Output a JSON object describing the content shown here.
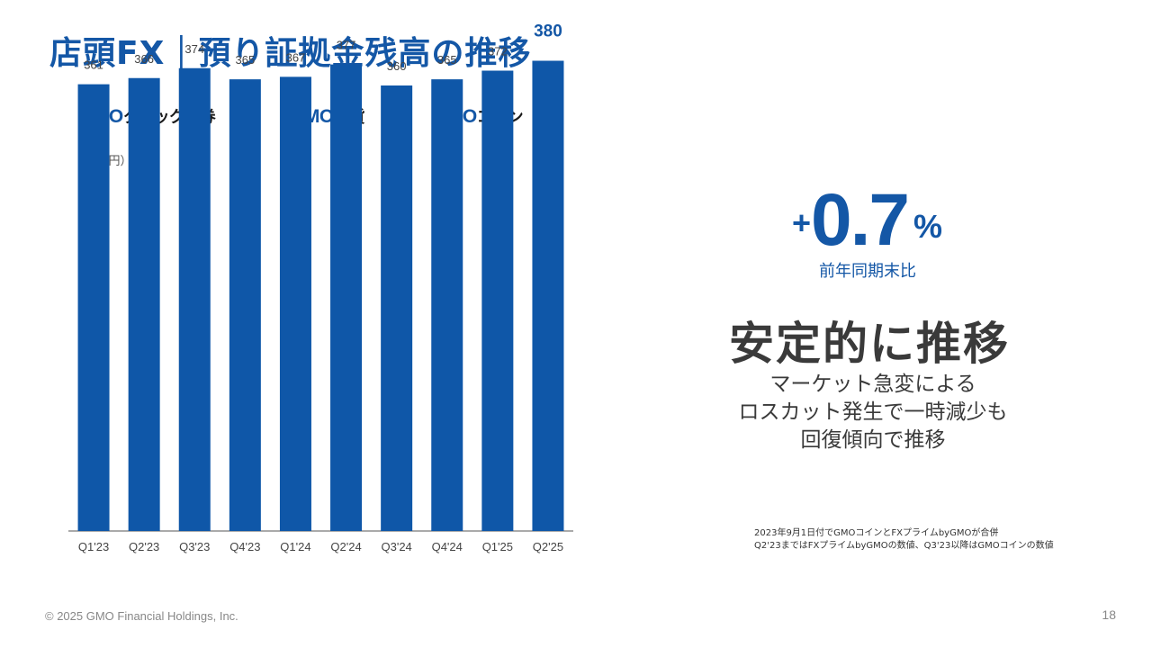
{
  "header": {
    "title": "店頭FX｜預り証拠金残高の推移"
  },
  "logos": [
    {
      "brand": "GMO",
      "name": "クリック証券",
      "icon": "gmo-click-logo"
    },
    {
      "brand": "GMO",
      "name": "外貨",
      "icon": "gmo-gaika-logo"
    },
    {
      "brand": "GMO",
      "name": "コイン",
      "icon": "gmo-coin-logo"
    }
  ],
  "unit_label": "（10億円）",
  "chart_data": {
    "type": "bar",
    "categories": [
      "Q1'23",
      "Q2'23",
      "Q3'23",
      "Q4'23",
      "Q1'24",
      "Q2'24",
      "Q3'24",
      "Q4'24",
      "Q1'25",
      "Q2'25"
    ],
    "values": [
      361,
      366,
      374,
      365,
      367,
      377,
      360,
      365,
      372,
      380
    ],
    "highlight_index": 9,
    "ylabel": "（10億円）",
    "ylim": [
      0,
      400
    ],
    "grid": false,
    "color": "#0f57a8"
  },
  "kpi": {
    "sign": "+",
    "value": "0.7",
    "unit": "%",
    "label": "前年同期末比"
  },
  "headline": "安定的に推移",
  "description": [
    "マーケット急変による",
    "ロスカット発生で一時減少も",
    "回復傾向で推移"
  ],
  "notes": [
    "2023年9月1日付でGMOコインとFXプライムbyGMOが合併",
    "Q2'23まではFXプライムbyGMOの数値、Q3'23以降はGMOコインの数値"
  ],
  "footer": {
    "copyright": "© 2025 GMO Financial Holdings, Inc.",
    "page_number": "18"
  },
  "colors": {
    "accent": "#1457a6",
    "bar": "#0f57a8",
    "text": "#3a3a3a"
  }
}
